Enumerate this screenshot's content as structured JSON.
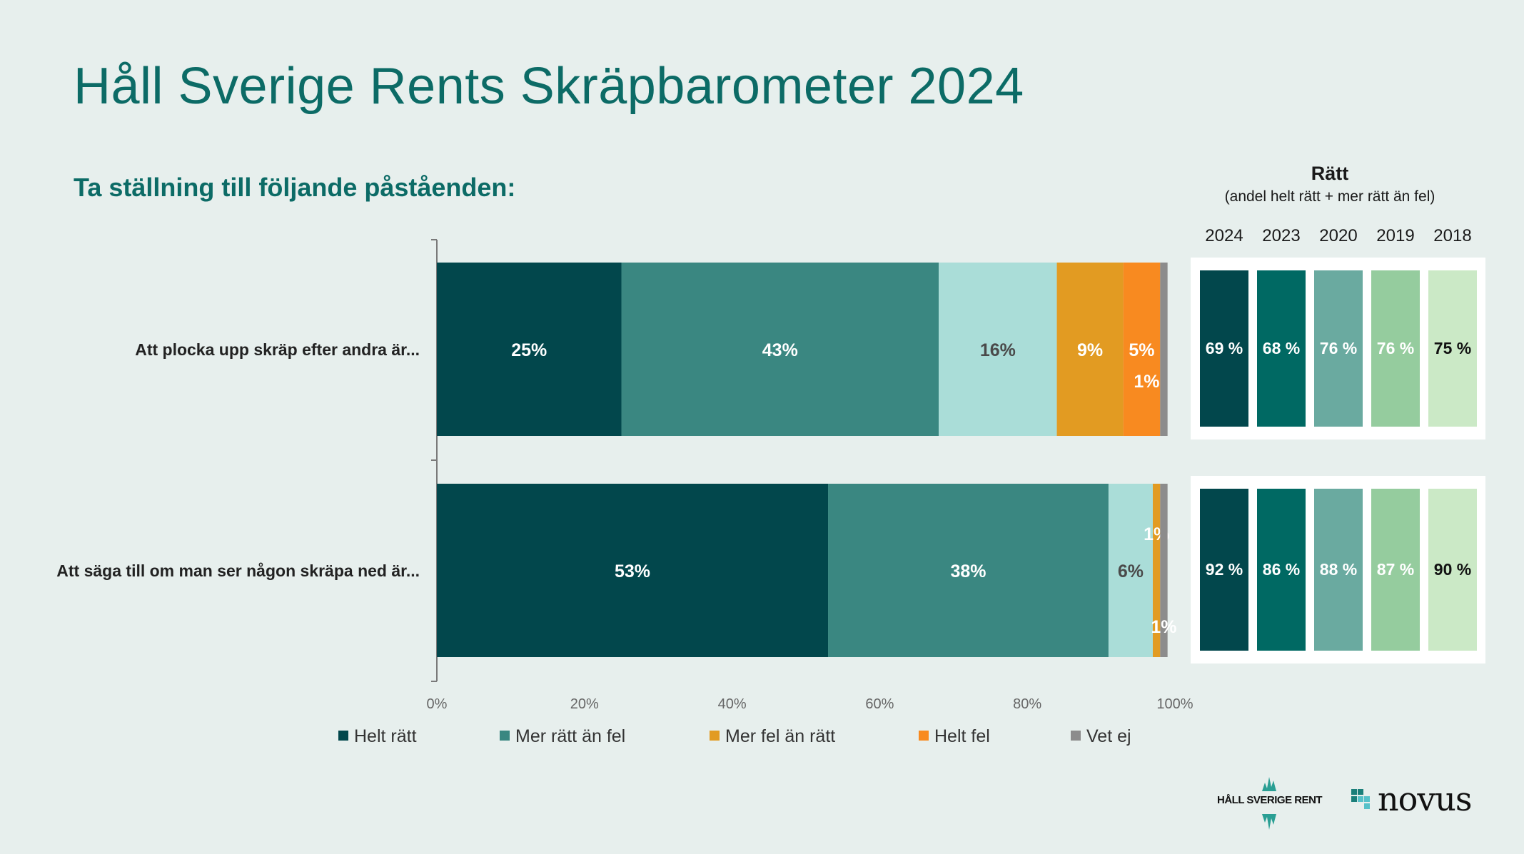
{
  "title": "Håll Sverige Rents Skräpbarometer 2024",
  "subtitle": "Ta ställning till följande påståenden:",
  "colors": {
    "background": "#e7efed",
    "title": "#0c6b66",
    "helt_ratt": "#02474c",
    "mer_ratt_an_fel": "#3a8781",
    "mer_fel_placeholder": "#aaddd8",
    "mer_fel_an_ratt": "#e29b22",
    "helt_fel": "#f88a20",
    "vet_ej": "#8c8c8c",
    "year_2024": "#02474c",
    "year_2023": "#006963",
    "year_2020": "#6aaaa0",
    "year_2019": "#95cc9e",
    "year_2018": "#cbe9c6"
  },
  "chart_data": {
    "type": "bar",
    "orientation": "horizontal",
    "stacked": true,
    "categories": [
      "Att plocka upp skräp efter andra är...",
      "Att säga till om man ser någon skräpa ned är..."
    ],
    "series": [
      {
        "name": "Helt rätt",
        "values": [
          25,
          53
        ],
        "labels": [
          "25%",
          "53%"
        ],
        "color": "#02474c"
      },
      {
        "name": "Mer rätt än fel",
        "values": [
          43,
          38
        ],
        "labels": [
          "43%",
          "38%"
        ],
        "color": "#3a8781"
      },
      {
        "name": "",
        "values": [
          16,
          6
        ],
        "labels": [
          "16%",
          "6%"
        ],
        "color": "#aaddd8"
      },
      {
        "name": "Mer fel än rätt",
        "values": [
          9,
          1
        ],
        "labels": [
          "9%",
          "1%"
        ],
        "color": "#e29b22"
      },
      {
        "name": "Helt fel",
        "values": [
          5,
          0
        ],
        "labels": [
          "5%",
          ""
        ],
        "color": "#f88a20"
      },
      {
        "name": "Vet ej",
        "values": [
          1,
          1
        ],
        "labels": [
          "1%",
          "1%"
        ],
        "color": "#8c8c8c"
      }
    ],
    "xticks": [
      "0%",
      "20%",
      "40%",
      "60%",
      "80%",
      "100%"
    ],
    "xlim": [
      0,
      100
    ],
    "legend_position": "bottom",
    "grid": false
  },
  "right_panel": {
    "title": "Rätt",
    "subtitle": "(andel helt rätt + mer rätt än fel)",
    "years": [
      "2024",
      "2023",
      "2020",
      "2019",
      "2018"
    ],
    "year_colors": [
      "#02474c",
      "#006963",
      "#6aaaa0",
      "#95cc9e",
      "#cbe9c6"
    ],
    "rows": [
      {
        "values": [
          69,
          68,
          76,
          76,
          75
        ],
        "labels": [
          "69 %",
          "68 %",
          "76 %",
          "76 %",
          "75 %"
        ]
      },
      {
        "values": [
          92,
          86,
          88,
          87,
          90
        ],
        "labels": [
          "92 %",
          "86 %",
          "88 %",
          "87 %",
          "90 %"
        ]
      }
    ]
  },
  "logos": {
    "hsr": "HÅLL SVERIGE RENT",
    "novus": "novus"
  }
}
